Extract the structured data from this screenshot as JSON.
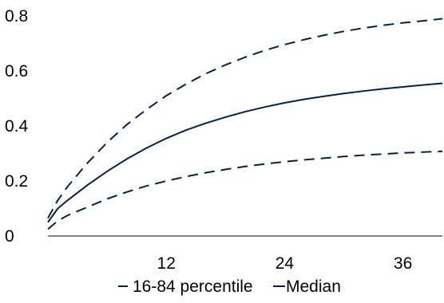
{
  "chart_data": {
    "type": "line",
    "title": "",
    "xlabel": "",
    "ylabel": "",
    "xlim": [
      0,
      40
    ],
    "ylim": [
      0,
      0.8
    ],
    "x_ticks": [
      12,
      24,
      36
    ],
    "x_tick_labels": [
      "12",
      "24",
      "36"
    ],
    "y_ticks": [
      0,
      0.2,
      0.4,
      0.6,
      0.8
    ],
    "y_tick_labels": [
      "0",
      "0.2",
      "0.4",
      "0.6",
      "0.8"
    ],
    "grid": false,
    "legend_position": "bottom",
    "legend": [
      {
        "label": "16-84 percentile",
        "style": "dashed"
      },
      {
        "label": "Median",
        "style": "solid"
      }
    ],
    "x": [
      0,
      1,
      2,
      4,
      6,
      8,
      10,
      12,
      14,
      16,
      18,
      20,
      22,
      24,
      26,
      28,
      30,
      32,
      34,
      36,
      38,
      40
    ],
    "series": [
      {
        "name": "Median",
        "style": "solid",
        "color": "#0a1f44",
        "values": [
          0.05,
          0.1,
          0.13,
          0.185,
          0.235,
          0.28,
          0.32,
          0.355,
          0.385,
          0.41,
          0.432,
          0.452,
          0.469,
          0.484,
          0.497,
          0.508,
          0.518,
          0.527,
          0.535,
          0.542,
          0.549,
          0.555
        ]
      },
      {
        "name": "16-84 percentile (upper)",
        "style": "dashed",
        "color": "#0a1f44",
        "values": [
          0.065,
          0.13,
          0.18,
          0.265,
          0.34,
          0.405,
          0.46,
          0.51,
          0.552,
          0.59,
          0.622,
          0.65,
          0.675,
          0.696,
          0.714,
          0.73,
          0.744,
          0.756,
          0.766,
          0.775,
          0.782,
          0.79
        ]
      },
      {
        "name": "16-84 percentile (lower)",
        "style": "dashed",
        "color": "#0a1f44",
        "values": [
          0.025,
          0.055,
          0.075,
          0.105,
          0.135,
          0.16,
          0.182,
          0.2,
          0.216,
          0.23,
          0.242,
          0.253,
          0.262,
          0.27,
          0.277,
          0.283,
          0.289,
          0.294,
          0.298,
          0.302,
          0.305,
          0.308
        ]
      }
    ]
  }
}
